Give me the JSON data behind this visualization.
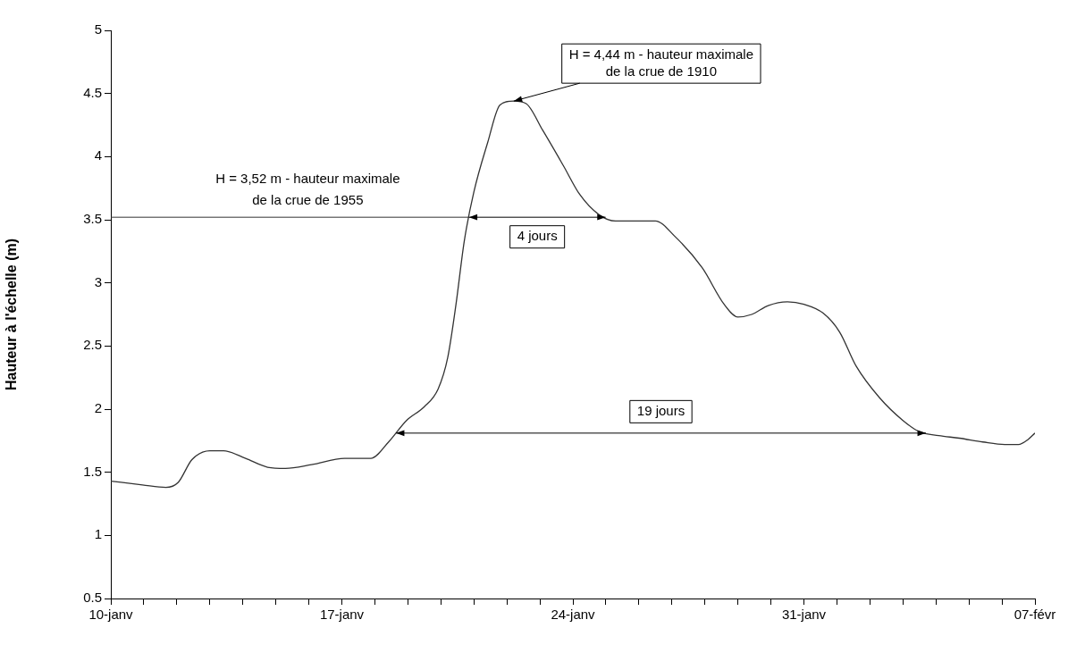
{
  "chart_data": {
    "type": "line",
    "ylabel": "Hauteur à l'échelle (m)",
    "x": [
      "--01-10T00:00",
      "--01-10T23:00",
      "--01-11T16:00",
      "--01-12T01:00",
      "--01-12T11:00",
      "--01-13T00:00",
      "--01-13T10:00",
      "--01-14T02:00",
      "--01-14T18:00",
      "--01-15T07:00",
      "--01-16T02:00",
      "--01-17T02:00",
      "--01-17T21:00",
      "--01-18T10:00",
      "--01-18T23:00",
      "--01-19T12:00",
      "--01-19T22:00",
      "--01-20T05:00",
      "--01-20T11:00",
      "--01-20T17:00",
      "--01-21T00:00",
      "--01-21T10:00",
      "--01-21T19:00",
      "--01-22T05:00",
      "--01-22T14:00",
      "--01-23T02:00",
      "--01-23T17:00",
      "--01-24T05:00",
      "--01-24T19:00",
      "--01-25T07:00",
      "--01-26T00:00",
      "--01-26T12:00",
      "--01-27T02:00",
      "--01-27T22:00",
      "--01-28T14:00",
      "--01-29T00:00",
      "--01-29T10:00",
      "--01-29T22:00",
      "--01-30T12:00",
      "--01-31T00:00",
      "--01-31T14:00",
      "--02-01T02:00",
      "--02-01T14:00",
      "--02-02T07:00",
      "--02-03T00:00",
      "--02-03T12:00",
      "--02-04T02:00",
      "--02-04T17:00",
      "--02-05T10:00",
      "--02-06T02:00",
      "--02-06T12:00",
      "--02-06T19:00",
      "--02-07T00:00"
    ],
    "series": [
      {
        "color": "#333333",
        "values": [
          1.43,
          1.4,
          1.38,
          1.42,
          1.6,
          1.67,
          1.67,
          1.61,
          1.54,
          1.53,
          1.56,
          1.61,
          1.61,
          1.74,
          1.91,
          2.02,
          2.16,
          2.41,
          2.83,
          3.33,
          3.72,
          4.11,
          4.41,
          4.44,
          4.42,
          4.21,
          3.93,
          3.7,
          3.54,
          3.49,
          3.49,
          3.49,
          3.37,
          3.12,
          2.83,
          2.73,
          2.75,
          2.82,
          2.85,
          2.83,
          2.76,
          2.61,
          2.34,
          2.09,
          1.91,
          1.82,
          1.79,
          1.77,
          1.74,
          1.72,
          1.72,
          1.76,
          1.81
        ]
      }
    ],
    "xlim": [
      "--01-10",
      "--02-07"
    ],
    "xticks": [
      {
        "value": "--01-10",
        "label": "10-janv"
      },
      {
        "value": "--01-11",
        "label": null
      },
      {
        "value": "--01-12",
        "label": null
      },
      {
        "value": "--01-13",
        "label": null
      },
      {
        "value": "--01-14",
        "label": null
      },
      {
        "value": "--01-15",
        "label": null
      },
      {
        "value": "--01-16",
        "label": null
      },
      {
        "value": "--01-17",
        "label": "17-janv"
      },
      {
        "value": "--01-18",
        "label": null
      },
      {
        "value": "--01-19",
        "label": null
      },
      {
        "value": "--01-20",
        "label": null
      },
      {
        "value": "--01-21",
        "label": null
      },
      {
        "value": "--01-22",
        "label": null
      },
      {
        "value": "--01-23",
        "label": null
      },
      {
        "value": "--01-24",
        "label": "24-janv"
      },
      {
        "value": "--01-25",
        "label": null
      },
      {
        "value": "--01-26",
        "label": null
      },
      {
        "value": "--01-27",
        "label": null
      },
      {
        "value": "--01-28",
        "label": null
      },
      {
        "value": "--01-29",
        "label": null
      },
      {
        "value": "--01-30",
        "label": null
      },
      {
        "value": "--01-31",
        "label": "31-janv"
      },
      {
        "value": "--02-01",
        "label": null
      },
      {
        "value": "--02-02",
        "label": null
      },
      {
        "value": "--02-03",
        "label": null
      },
      {
        "value": "--02-04",
        "label": null
      },
      {
        "value": "--02-05",
        "label": null
      },
      {
        "value": "--02-06",
        "label": null
      },
      {
        "value": "--02-07",
        "label": "07-févr"
      }
    ],
    "ylim": [
      0.5,
      5
    ],
    "yticks": [
      0.5,
      1,
      1.5,
      2,
      2.5,
      3,
      3.5,
      4,
      4.5,
      5
    ],
    "grid": false,
    "legend": false,
    "marker": "none",
    "line_style": "solid",
    "ref_lines": [
      {
        "axis": "y",
        "value": 3.52,
        "label": "H = 3,52 m - hauteur maximale de la crue de 1955",
        "color": "#333333"
      }
    ],
    "annotations": [
      {
        "text": "H = 4,44 m - hauteur maximale de la crue de 1910",
        "x": "--01-22T05:00",
        "y": 4.44
      },
      "4 jours",
      "19 jours"
    ]
  }
}
